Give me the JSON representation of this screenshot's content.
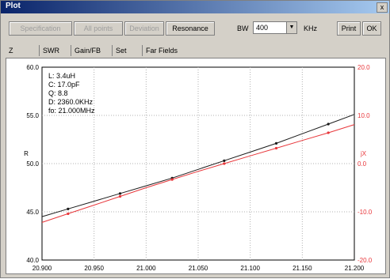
{
  "window": {
    "title": "Plot",
    "close_glyph": "x"
  },
  "toolbar": {
    "buttons": [
      {
        "label": "Specification",
        "enabled": false
      },
      {
        "label": "All points",
        "enabled": false
      },
      {
        "label": "Deviation",
        "enabled": false
      },
      {
        "label": "Resonance",
        "enabled": true
      }
    ],
    "bw_label": "BW",
    "bw_value": "400",
    "bw_unit": "KHz",
    "print_label": "Print",
    "ok_label": "OK"
  },
  "tabs": [
    "Z",
    "SWR",
    "Gain/FB",
    "Set",
    "Far Fields"
  ],
  "info": {
    "L": "L: 3.4uH",
    "C": "C: 17.0pF",
    "Q": "Q: 8.8",
    "D": "D: 2360.0KHz",
    "fo": "fo: 21.000MHz"
  },
  "chart_data": {
    "type": "line",
    "x": [
      20.9,
      20.95,
      21.0,
      21.05,
      21.1,
      21.15,
      21.2
    ],
    "xlim": [
      20.9,
      21.2
    ],
    "xticks": [
      "20.900",
      "20.950",
      "21.000",
      "21.050",
      "21.100",
      "21.150",
      "21.200"
    ],
    "left_axis": {
      "label": "R",
      "ylim": [
        40,
        60
      ],
      "ticks": [
        "60.0",
        "55.0",
        "50.0",
        "45.0",
        "40.0"
      ]
    },
    "right_axis": {
      "label": "jX",
      "ylim": [
        -20,
        20
      ],
      "ticks": [
        "20.0",
        "10.0",
        "0.0",
        "-10.0",
        "-20.0"
      ]
    },
    "series": [
      {
        "axis": "left",
        "color": "#1a1a1a",
        "x": [
          20.9,
          20.925,
          20.95,
          20.975,
          21.0,
          21.025,
          21.05,
          21.075,
          21.1,
          21.125,
          21.15,
          21.175,
          21.2
        ],
        "values": [
          44.5,
          45.3,
          46.1,
          46.9,
          47.7,
          48.5,
          49.4,
          50.3,
          51.2,
          52.1,
          53.1,
          54.1,
          55.1
        ]
      },
      {
        "axis": "right",
        "color": "#e8363a",
        "x": [
          20.9,
          20.925,
          20.95,
          20.975,
          21.0,
          21.025,
          21.05,
          21.075,
          21.1,
          21.125,
          21.15,
          21.175,
          21.2
        ],
        "values": [
          -12.2,
          -10.4,
          -8.6,
          -6.8,
          -5.0,
          -3.3,
          -1.6,
          0.0,
          1.6,
          3.2,
          4.8,
          6.4,
          8.1
        ]
      }
    ],
    "grid": true
  }
}
